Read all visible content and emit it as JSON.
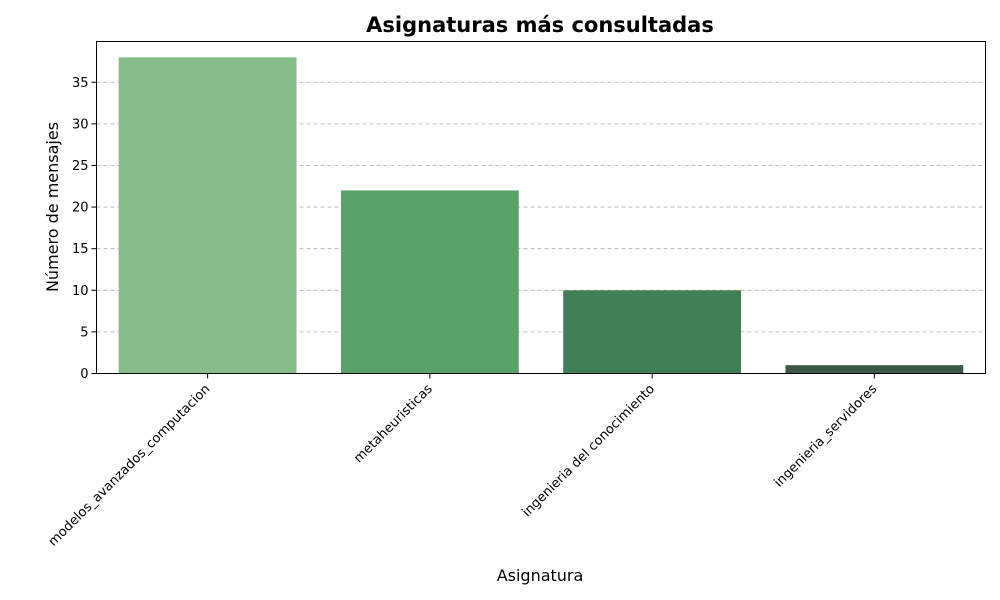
{
  "chart_data": {
    "type": "bar",
    "title": "Asignaturas más consultadas",
    "xlabel": "Asignatura",
    "ylabel": "Número de mensajes",
    "categories": [
      "modelos_avanzados_computacion",
      "metaheuristicas",
      "ingenieria del conocimiento",
      "ingenieria_servidores"
    ],
    "values": [
      38,
      22,
      10,
      1
    ],
    "bar_colors": [
      "#86bb8a",
      "#5aa16a",
      "#3f7f55",
      "#3b5a45"
    ],
    "yticks": [
      0,
      5,
      10,
      15,
      20,
      25,
      30,
      35
    ],
    "ylim": [
      0,
      39.9
    ],
    "grid": "y-dashed",
    "legend": "none"
  }
}
